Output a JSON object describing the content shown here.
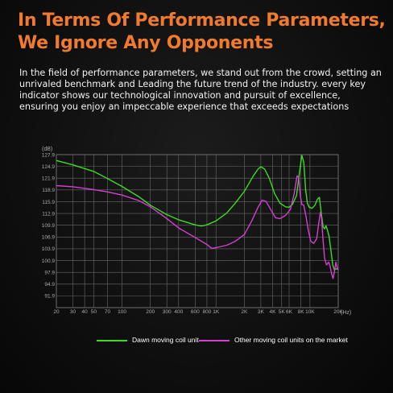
{
  "headline": {
    "line1": "In Terms Of Performance Parameters,",
    "line2": "We Ignore Any Opponents"
  },
  "body_text": "In the field of performance parameters, we stand out from the crowd, setting an unrivaled benchmark and Leading the future trend of the industry. every key indicator shows our technological innovation and pursuit of excellence, ensuring you enjoy an impeccable experience that exceeds expectations",
  "chart_data": {
    "type": "line",
    "title": "",
    "ylabel": "(dB)",
    "xlabel": "(Hz)",
    "xscale": "log",
    "xlim": [
      20,
      20000
    ],
    "ylim": [
      88.9,
      127.9
    ],
    "grid": true,
    "legend_position": "bottom",
    "y_ticks": [
      "127.9",
      "124.9",
      "121.9",
      "118.9",
      "115.9",
      "112.9",
      "109.9",
      "106.9",
      "103.9",
      "100.9",
      "97.9",
      "94.9",
      "91.9"
    ],
    "y_tick_values": [
      127.9,
      124.9,
      121.9,
      118.9,
      115.9,
      112.9,
      109.9,
      106.9,
      103.9,
      100.9,
      97.9,
      94.9,
      91.9
    ],
    "x_ticks": [
      "20",
      "30",
      "40",
      "50",
      "70",
      "100",
      "200",
      "300",
      "400",
      "600",
      "800",
      "1K",
      "2K",
      "3K",
      "4K",
      "5K",
      "6K",
      "8K",
      "10K",
      "20K"
    ],
    "x_tick_values": [
      20,
      30,
      40,
      50,
      70,
      100,
      200,
      300,
      400,
      600,
      800,
      1000,
      2000,
      3000,
      4000,
      5000,
      6000,
      8000,
      10000,
      20000
    ],
    "series": [
      {
        "name": "Dawn moving coil unit",
        "color": "#3ddc1e",
        "points": [
          [
            20,
            126.4
          ],
          [
            30,
            125.3
          ],
          [
            50,
            123.6
          ],
          [
            70,
            121.8
          ],
          [
            100,
            119.8
          ],
          [
            150,
            117.2
          ],
          [
            200,
            115.0
          ],
          [
            300,
            112.6
          ],
          [
            400,
            111.3
          ],
          [
            600,
            110.0
          ],
          [
            700,
            109.7
          ],
          [
            800,
            110.0
          ],
          [
            1000,
            111.0
          ],
          [
            1300,
            113.0
          ],
          [
            1600,
            115.5
          ],
          [
            2000,
            118.5
          ],
          [
            2500,
            122.5
          ],
          [
            2800,
            124.2
          ],
          [
            3000,
            124.8
          ],
          [
            3300,
            124.2
          ],
          [
            3700,
            121.8
          ],
          [
            4200,
            118.0
          ],
          [
            4800,
            115.5
          ],
          [
            5500,
            114.6
          ],
          [
            6000,
            114.5
          ],
          [
            6500,
            115.2
          ],
          [
            7200,
            117.5
          ],
          [
            7800,
            124.0
          ],
          [
            8200,
            127.7
          ],
          [
            8600,
            126.0
          ],
          [
            9000,
            119.0
          ],
          [
            9400,
            115.5
          ],
          [
            9800,
            114.5
          ],
          [
            10500,
            114.2
          ],
          [
            11300,
            115.0
          ],
          [
            12000,
            116.5
          ],
          [
            12600,
            117.0
          ],
          [
            13200,
            113.0
          ],
          [
            13800,
            109.5
          ],
          [
            14300,
            109.0
          ],
          [
            14800,
            109.8
          ],
          [
            15300,
            108.8
          ],
          [
            16000,
            107.0
          ],
          [
            16800,
            103.0
          ],
          [
            17500,
            99.8
          ],
          [
            18200,
            98.5
          ],
          [
            19000,
            98.8
          ],
          [
            20000,
            98.7
          ]
        ]
      },
      {
        "name": "Other moving coil units on the market",
        "color": "#d43fd2",
        "points": [
          [
            20,
            120.0
          ],
          [
            30,
            119.7
          ],
          [
            50,
            119.0
          ],
          [
            70,
            118.4
          ],
          [
            100,
            117.6
          ],
          [
            150,
            116.2
          ],
          [
            200,
            114.6
          ],
          [
            300,
            111.6
          ],
          [
            400,
            109.2
          ],
          [
            600,
            106.8
          ],
          [
            800,
            105.0
          ],
          [
            900,
            104.0
          ],
          [
            1000,
            104.2
          ],
          [
            1300,
            104.8
          ],
          [
            1600,
            105.8
          ],
          [
            2000,
            107.5
          ],
          [
            2400,
            111.0
          ],
          [
            2800,
            114.5
          ],
          [
            3100,
            116.3
          ],
          [
            3400,
            116.0
          ],
          [
            3800,
            114.0
          ],
          [
            4300,
            111.8
          ],
          [
            4800,
            111.6
          ],
          [
            5500,
            112.4
          ],
          [
            6200,
            114.0
          ],
          [
            6800,
            118.0
          ],
          [
            7300,
            122.5
          ],
          [
            7600,
            122.0
          ],
          [
            7900,
            117.5
          ],
          [
            8200,
            115.2
          ],
          [
            8600,
            115.0
          ],
          [
            9100,
            112.0
          ],
          [
            9600,
            108.6
          ],
          [
            10200,
            105.8
          ],
          [
            11000,
            105.3
          ],
          [
            11800,
            106.5
          ],
          [
            12400,
            110.5
          ],
          [
            12900,
            113.2
          ],
          [
            13300,
            111.5
          ],
          [
            13800,
            106.0
          ],
          [
            14300,
            101.5
          ],
          [
            15000,
            99.8
          ],
          [
            15800,
            100.5
          ],
          [
            16400,
            99.5
          ],
          [
            17000,
            97.5
          ],
          [
            17600,
            96.3
          ],
          [
            18200,
            98.0
          ],
          [
            18900,
            100.5
          ],
          [
            19500,
            99.0
          ],
          [
            20000,
            98.5
          ]
        ]
      }
    ]
  }
}
